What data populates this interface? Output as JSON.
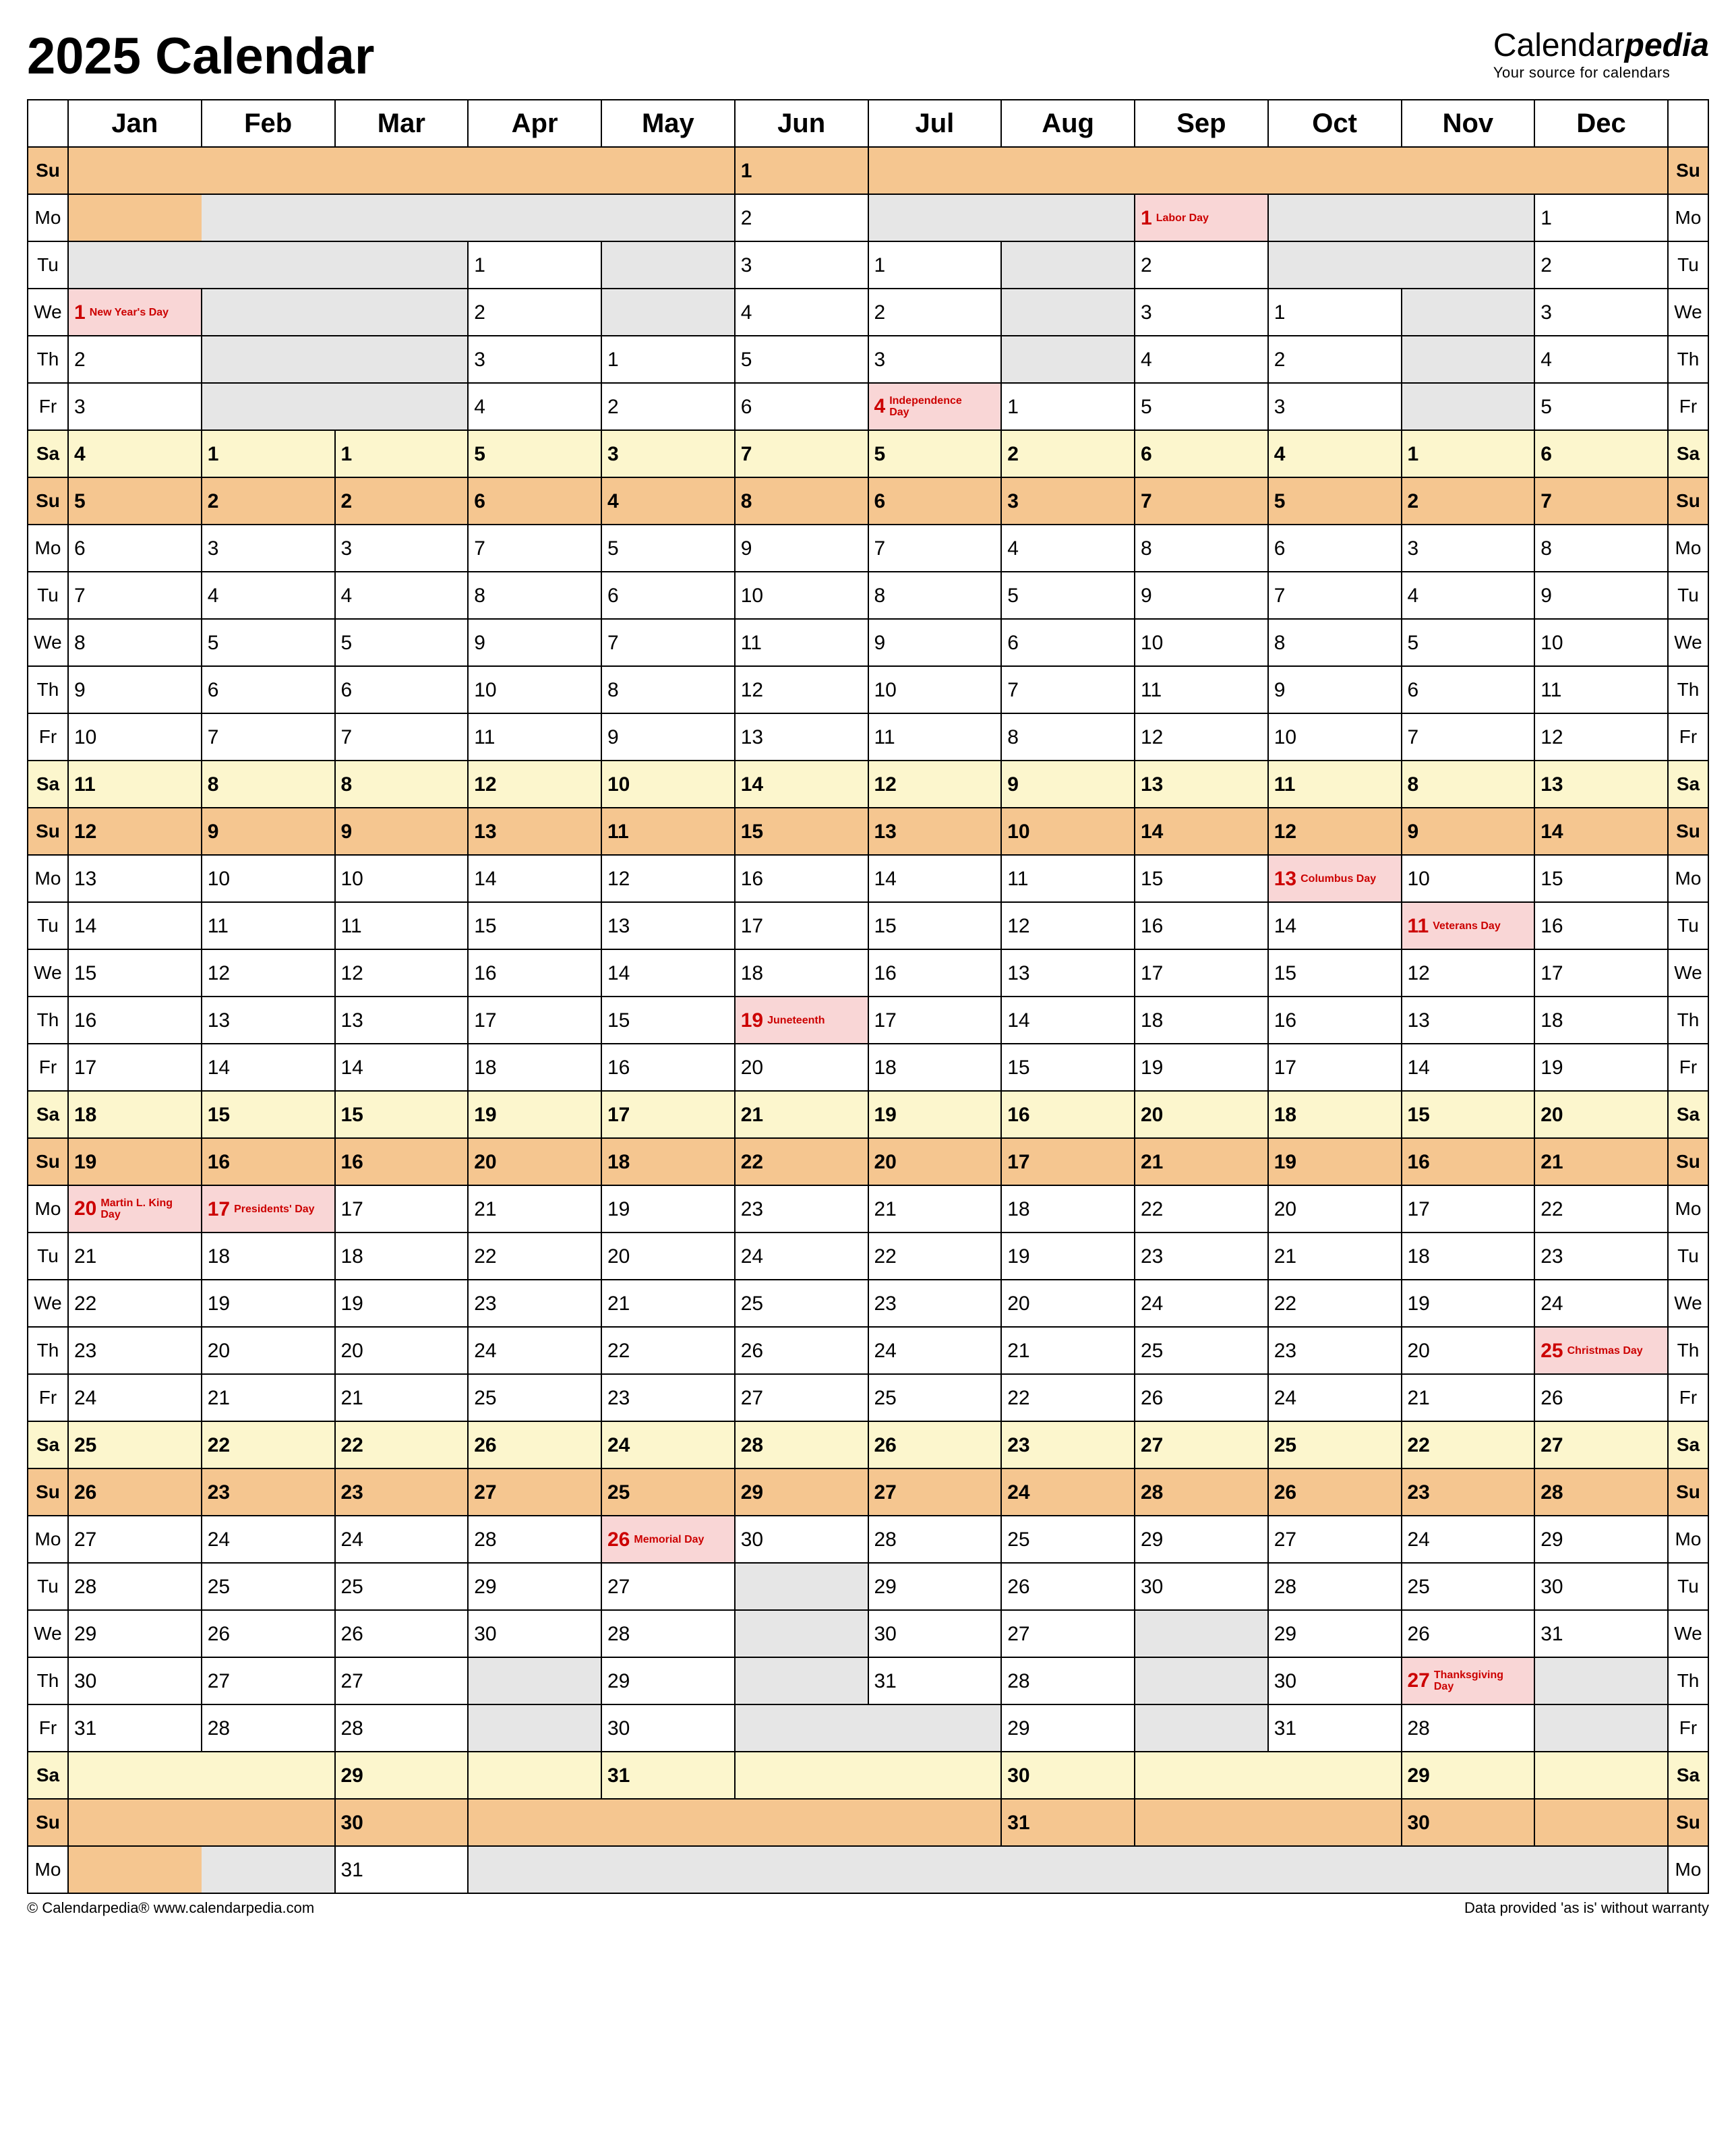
{
  "title": "2025 Calendar",
  "brand": {
    "name1": "Calendar",
    "name2": "pedia",
    "tagline": "Your source for calendars"
  },
  "footer": {
    "left": "© Calendarpedia®   www.calendarpedia.com",
    "right": "Data provided 'as is' without warranty"
  },
  "months": [
    "Jan",
    "Feb",
    "Mar",
    "Apr",
    "May",
    "Jun",
    "Jul",
    "Aug",
    "Sep",
    "Oct",
    "Nov",
    "Dec"
  ],
  "dow": [
    "Su",
    "Mo",
    "Tu",
    "We",
    "Th",
    "Fr",
    "Sa",
    "Su",
    "Mo",
    "Tu",
    "We",
    "Th",
    "Fr",
    "Sa",
    "Su",
    "Mo",
    "Tu",
    "We",
    "Th",
    "Fr",
    "Sa",
    "Su",
    "Mo",
    "Tu",
    "We",
    "Th",
    "Fr",
    "Sa",
    "Su",
    "Mo",
    "Tu",
    "We",
    "Th",
    "Fr",
    "Sa",
    "Su",
    "Mo"
  ],
  "dowType": [
    "sun",
    "",
    "",
    "",
    "",
    "",
    "sat",
    "sun",
    "",
    "",
    "",
    "",
    "",
    "sat",
    "sun",
    "",
    "",
    "",
    "",
    "",
    "sat",
    "sun",
    "",
    "",
    "",
    "",
    "",
    "sat",
    "sun",
    "",
    "",
    "",
    "",
    "",
    "sat",
    "sun",
    ""
  ],
  "colors": {
    "saturday": "#fcf6cd",
    "sunday": "#f5c690",
    "holiday": "#f9d6d6",
    "empty": "#e6e6e6",
    "border": "#000000",
    "holiday_text": "#cc0000"
  },
  "monthStart": [
    3,
    6,
    6,
    2,
    4,
    0,
    2,
    5,
    1,
    3,
    6,
    1
  ],
  "monthLen": [
    31,
    28,
    31,
    30,
    31,
    30,
    31,
    31,
    30,
    31,
    30,
    31
  ],
  "holidays": {
    "0": {
      "1": "New Year's Day",
      "20": "Martin L. King Day"
    },
    "1": {
      "17": "Presidents' Day"
    },
    "4": {
      "26": "Memorial Day"
    },
    "5": {
      "19": "Juneteenth"
    },
    "6": {
      "4": "Independence Day"
    },
    "8": {
      "1": "Labor Day"
    },
    "9": {
      "13": "Columbus Day"
    },
    "10": {
      "11": "Veterans Day",
      "27": "Thanksgiving Day"
    },
    "11": {
      "25": "Christmas Day"
    }
  }
}
